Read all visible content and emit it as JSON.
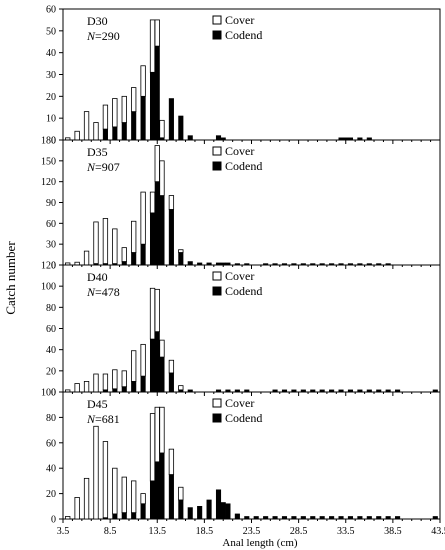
{
  "figure": {
    "ylabel": "Catch number",
    "xlabel": "Anal length (cm)",
    "x_ticks": [
      "3.5",
      "8.5",
      "13.5",
      "18.5",
      "23.5",
      "28.5",
      "33.5",
      "38.5",
      "43.5"
    ],
    "colors": {
      "cover": "#ffffff",
      "codend": "#000000",
      "stroke": "#000000"
    }
  },
  "chart_data": [
    {
      "type": "bar",
      "stacked": true,
      "panel": "D30",
      "n_label": "=290",
      "legend": [
        "Cover",
        "Codend"
      ],
      "xlim": [
        3.5,
        43.5
      ],
      "ylim": [
        0,
        60
      ],
      "y_ticks": [
        "0",
        "10",
        "20",
        "30",
        "40",
        "50",
        "60"
      ],
      "x": [
        4,
        5,
        6,
        7,
        8,
        9,
        10,
        11,
        12,
        13,
        13.5,
        14,
        15,
        16,
        17,
        20,
        20.5,
        33,
        33.5,
        34,
        35,
        36
      ],
      "series": [
        {
          "name": "Codend",
          "values": [
            0,
            0,
            0,
            0,
            5,
            6,
            8,
            13,
            20,
            31,
            43,
            1,
            19,
            11,
            2,
            2,
            1,
            1,
            1,
            1,
            1,
            1
          ]
        },
        {
          "name": "Cover",
          "values": [
            1,
            4,
            13,
            8,
            11,
            13,
            12,
            11,
            14,
            24,
            12,
            8,
            0,
            0,
            0,
            0,
            0,
            0,
            0,
            0,
            0,
            0
          ]
        }
      ]
    },
    {
      "type": "bar",
      "stacked": true,
      "panel": "D35",
      "n_label": "=907",
      "legend": [
        "Cover",
        "Codend"
      ],
      "xlim": [
        3.5,
        43.5
      ],
      "ylim": [
        0,
        180
      ],
      "y_ticks": [
        "0",
        "30",
        "60",
        "90",
        "120",
        "150",
        "180"
      ],
      "x": [
        4,
        5,
        6,
        7,
        8,
        9,
        10,
        11,
        12,
        13,
        13.5,
        14,
        15,
        16,
        17,
        18,
        19,
        20,
        20.5,
        21,
        22,
        23,
        25,
        26,
        27,
        28,
        29,
        30,
        31,
        32,
        33,
        34,
        35,
        36,
        37,
        38
      ],
      "series": [
        {
          "name": "Codend",
          "values": [
            0,
            0,
            0,
            2,
            2,
            2,
            5,
            18,
            30,
            75,
            120,
            100,
            80,
            18,
            5,
            3,
            3,
            3,
            3,
            3,
            2,
            2,
            2,
            2,
            2,
            2,
            2,
            2,
            2,
            2,
            2,
            2,
            2,
            2,
            2,
            2
          ]
        },
        {
          "name": "Cover",
          "values": [
            3,
            4,
            20,
            60,
            65,
            50,
            20,
            45,
            75,
            30,
            52,
            50,
            20,
            4,
            0,
            0,
            0,
            0,
            0,
            0,
            0,
            0,
            0,
            0,
            0,
            0,
            0,
            0,
            0,
            0,
            0,
            0,
            0,
            0,
            0,
            0
          ]
        }
      ]
    },
    {
      "type": "bar",
      "stacked": true,
      "panel": "D40",
      "n_label": "=478",
      "legend": [
        "Cover",
        "Codend"
      ],
      "xlim": [
        3.5,
        43.5
      ],
      "ylim": [
        0,
        120
      ],
      "y_ticks": [
        "0",
        "20",
        "40",
        "60",
        "80",
        "100",
        "120"
      ],
      "x": [
        4,
        5,
        6,
        7,
        8,
        9,
        10,
        11,
        12,
        13,
        13.5,
        14,
        15,
        16,
        17,
        20,
        21,
        22,
        23,
        26,
        27,
        28,
        29,
        30,
        31,
        32,
        33,
        34,
        35,
        36,
        37,
        38,
        39,
        43
      ],
      "series": [
        {
          "name": "Codend",
          "values": [
            0,
            0,
            0,
            0,
            2,
            3,
            5,
            10,
            15,
            50,
            57,
            33,
            18,
            2,
            2,
            2,
            2,
            2,
            2,
            2,
            2,
            2,
            2,
            2,
            2,
            2,
            2,
            2,
            2,
            2,
            2,
            2,
            2,
            2
          ]
        },
        {
          "name": "Cover",
          "values": [
            2,
            8,
            10,
            17,
            15,
            18,
            15,
            29,
            30,
            48,
            40,
            16,
            12,
            4,
            0,
            0,
            0,
            0,
            0,
            0,
            0,
            0,
            0,
            0,
            0,
            0,
            0,
            0,
            0,
            0,
            0,
            0,
            0,
            0
          ]
        }
      ]
    },
    {
      "type": "bar",
      "stacked": true,
      "panel": "D45",
      "n_label": "=681",
      "legend": [
        "Cover",
        "Codend"
      ],
      "xlim": [
        3.5,
        43.5
      ],
      "ylim": [
        0,
        100
      ],
      "y_ticks": [
        "0",
        "20",
        "40",
        "60",
        "80",
        "100"
      ],
      "x": [
        4,
        5,
        6,
        7,
        8,
        9,
        10,
        11,
        12,
        13,
        13.5,
        14,
        15,
        16,
        17,
        18,
        19,
        20,
        20.5,
        21,
        22,
        23,
        24,
        25,
        26,
        27,
        28,
        29,
        30,
        31,
        32,
        33,
        34,
        35,
        36,
        37,
        38,
        39,
        43
      ],
      "series": [
        {
          "name": "Codend",
          "values": [
            0,
            0,
            0,
            0,
            1,
            4,
            5,
            5,
            12,
            30,
            45,
            52,
            35,
            15,
            9,
            10,
            15,
            23,
            13,
            12,
            4,
            2,
            2,
            2,
            2,
            2,
            2,
            2,
            2,
            2,
            2,
            2,
            2,
            2,
            2,
            2,
            2,
            2,
            2
          ]
        },
        {
          "name": "Cover",
          "values": [
            2,
            17,
            32,
            73,
            60,
            36,
            28,
            25,
            8,
            53,
            43,
            36,
            20,
            10,
            0,
            0,
            0,
            0,
            0,
            0,
            0,
            0,
            0,
            0,
            0,
            0,
            0,
            0,
            0,
            0,
            0,
            0,
            0,
            0,
            0,
            0,
            0,
            0,
            0
          ]
        }
      ]
    }
  ]
}
